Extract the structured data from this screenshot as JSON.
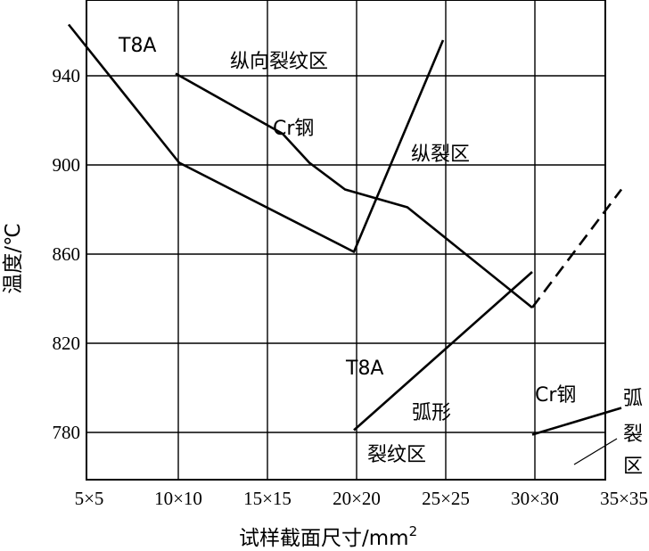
{
  "chart_data": {
    "type": "line",
    "xlabel": "试样截面尺寸/mm",
    "xlabel_sup": "2",
    "ylabel": "温度/℃",
    "x_categories": [
      "5×5",
      "10×10",
      "15×15",
      "20×20",
      "25×25",
      "30×30",
      "35×35"
    ],
    "y_ticks": [
      780,
      820,
      860,
      900,
      940
    ],
    "ylim": [
      757,
      981
    ],
    "grid": true,
    "series": [
      {
        "name": "T8A",
        "style": "solid",
        "points": [
          [
            4.0,
            963
          ],
          [
            10.2,
            901
          ],
          [
            20.0,
            861
          ],
          [
            25.0,
            956
          ]
        ]
      },
      {
        "name": "Cr钢",
        "style": "solid",
        "points": [
          [
            10.0,
            941
          ],
          [
            16.0,
            914
          ],
          [
            17.5,
            901
          ],
          [
            19.5,
            889
          ],
          [
            23.0,
            881
          ],
          [
            30.0,
            836
          ]
        ]
      },
      {
        "name": "Cr钢",
        "style": "dashed",
        "points": [
          [
            30.0,
            836
          ],
          [
            35.0,
            889
          ]
        ]
      },
      {
        "name": "T8A",
        "style": "solid",
        "points": [
          [
            20.0,
            781
          ],
          [
            30.0,
            852
          ]
        ]
      },
      {
        "name": "Cr钢",
        "style": "solid",
        "points": [
          [
            30.0,
            779
          ],
          [
            35.0,
            791
          ]
        ]
      }
    ],
    "annotations": {
      "t8a_top": "T8A",
      "zone_longitudinal_crack": "纵向裂纹区",
      "cr_steel_upper": "Cr钢",
      "zone_longitudinal_split": "纵裂区",
      "t8a_lower": "T8A",
      "zone_arc_crack_line1": "弧形",
      "zone_arc_crack_line2": "裂纹区",
      "cr_steel_lower": "Cr钢",
      "zone_arc_split_1": "弧",
      "zone_arc_split_2": "裂",
      "zone_arc_split_3": "区"
    }
  }
}
